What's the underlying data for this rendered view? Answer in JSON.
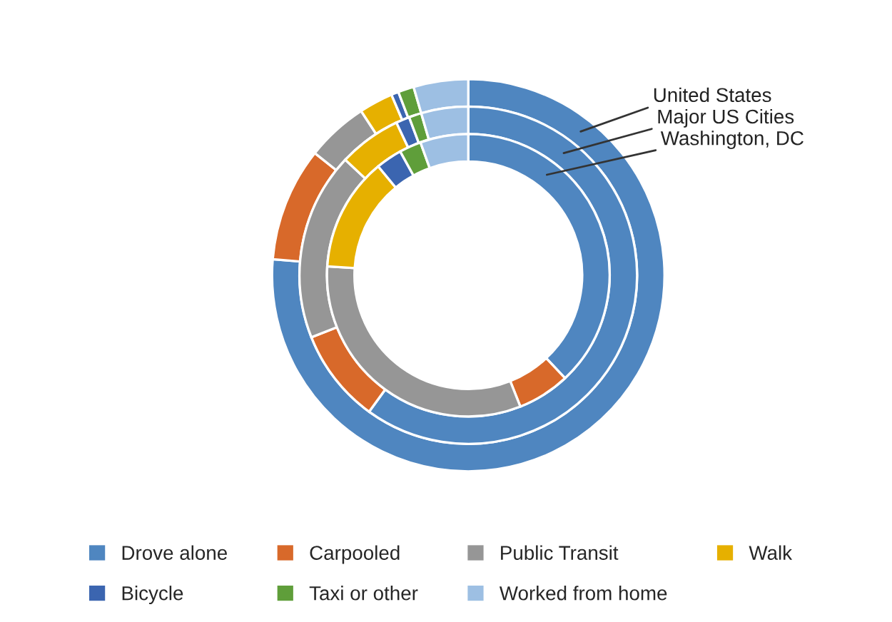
{
  "chart_data": {
    "type": "donut",
    "categories": [
      "Drove alone",
      "Carpooled",
      "Public Transit",
      "Walk",
      "Bicycle",
      "Taxi or other",
      "Worked from home"
    ],
    "colors": [
      "#4f86c0",
      "#d8692a",
      "#969696",
      "#e6b000",
      "#3b65b0",
      "#5f9e3a",
      "#9dbfe3"
    ],
    "series": [
      {
        "name": "United States",
        "values": [
          76.3,
          9.4,
          5.1,
          2.8,
          0.6,
          1.3,
          4.5
        ]
      },
      {
        "name": "Major US Cities",
        "values": [
          60,
          9,
          18,
          6,
          1.3,
          1.2,
          4.5
        ]
      },
      {
        "name": "Washington, DC",
        "values": [
          38,
          6,
          32,
          13,
          3,
          2.5,
          5.5
        ]
      }
    ],
    "legend": "bottom"
  }
}
